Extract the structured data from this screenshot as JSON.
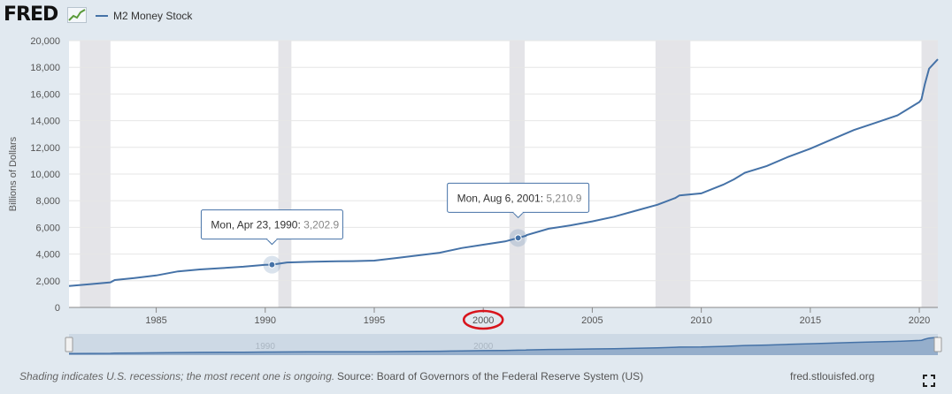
{
  "header": {
    "logo_text": "FRED",
    "logo_icon": "line-graph-icon",
    "legend_label": "M2 Money Stock",
    "legend_color": "#4572a7"
  },
  "chart_data": {
    "type": "line",
    "ylabel": "Billions of Dollars",
    "ylim": [
      0,
      20000
    ],
    "y_ticks": [
      0,
      2000,
      4000,
      6000,
      8000,
      10000,
      12000,
      14000,
      16000,
      18000,
      20000
    ],
    "y_tick_labels": [
      "0",
      "2,000",
      "4,000",
      "6,000",
      "8,000",
      "10,000",
      "12,000",
      "14,000",
      "16,000",
      "18,000",
      "20,000"
    ],
    "xlim": [
      1981.0,
      2020.85
    ],
    "x_ticks": [
      1985,
      1990,
      1995,
      2000,
      2005,
      2010,
      2015,
      2020
    ],
    "x_tick_labels": [
      "1985",
      "1990",
      "1995",
      "2000",
      "2005",
      "2010",
      "2015",
      "2020"
    ],
    "grid": true,
    "recessions": [
      [
        1981.5,
        1982.9
      ],
      [
        1990.6,
        1991.2
      ],
      [
        2001.2,
        2001.9
      ],
      [
        2007.9,
        2009.5
      ],
      [
        2020.1,
        2020.85
      ]
    ],
    "series": [
      {
        "name": "M2 Money Stock",
        "color": "#4572a7",
        "x": [
          1981.0,
          1982.0,
          1982.9,
          1983.1,
          1984.0,
          1985.0,
          1986.0,
          1987.0,
          1988.0,
          1989.0,
          1990.0,
          1990.31,
          1991.0,
          1992.0,
          1993.0,
          1994.0,
          1995.0,
          1996.0,
          1997.0,
          1998.0,
          1999.0,
          2000.0,
          2001.0,
          2001.6,
          2001.95,
          2002.0,
          2003.0,
          2004.0,
          2005.0,
          2006.0,
          2007.0,
          2008.0,
          2008.8,
          2009.0,
          2010.0,
          2011.0,
          2011.5,
          2012.0,
          2013.0,
          2014.0,
          2015.0,
          2016.0,
          2017.0,
          2018.0,
          2019.0,
          2020.0,
          2020.1,
          2020.25,
          2020.45,
          2020.85
        ],
        "values": [
          1600,
          1750,
          1880,
          2050,
          2200,
          2400,
          2700,
          2850,
          2950,
          3050,
          3200,
          3203,
          3370,
          3420,
          3450,
          3470,
          3510,
          3700,
          3900,
          4100,
          4450,
          4700,
          4950,
          5211,
          5370,
          5430,
          5900,
          6150,
          6450,
          6800,
          7250,
          7700,
          8200,
          8400,
          8550,
          9200,
          9600,
          10100,
          10600,
          11300,
          11900,
          12600,
          13300,
          13850,
          14400,
          15400,
          15600,
          16700,
          17900,
          18600
        ]
      }
    ],
    "tooltips": [
      {
        "date": "Mon, Apr 23, 1990",
        "value_text": "3,202.9",
        "x": 1990.31,
        "y": 3202.9
      },
      {
        "date": "Mon, Aug 6, 2001",
        "value_text": "5,210.9",
        "x": 2001.6,
        "y": 5210.9
      }
    ],
    "highlight_tick": "2000",
    "navigator": {
      "labels": [
        "1990",
        "2000"
      ],
      "label_values": [
        1990,
        2000
      ]
    }
  },
  "footer": {
    "footnote": "Shading indicates U.S. recessions; the most recent one is ongoing.",
    "source": "Source: Board of Governors of the Federal Reserve System (US)",
    "site": "fred.stlouisfed.org",
    "fullscreen_icon": "fullscreen-icon"
  }
}
